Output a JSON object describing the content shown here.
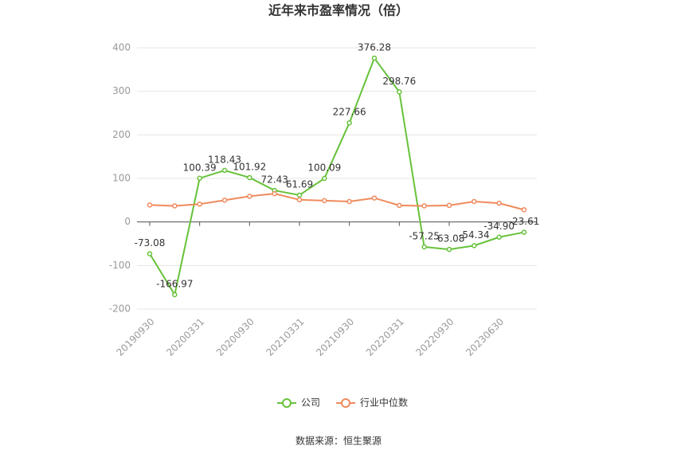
{
  "chart_data": {
    "type": "line",
    "title": "近年来市盈率情况（倍）",
    "source": "数据来源：恒生聚源",
    "categories": [
      "20190930",
      null,
      "20200331",
      null,
      "20200930",
      null,
      "20210331",
      null,
      "20210930",
      null,
      "20220331",
      null,
      "20220930",
      null,
      "20230630",
      null
    ],
    "series": [
      {
        "name": "公司",
        "color": "#66c23a",
        "values": [
          -73.08,
          -166.97,
          100.39,
          118.43,
          101.92,
          72.43,
          61.69,
          100.09,
          227.66,
          376.28,
          298.76,
          -57.25,
          -63.08,
          -54.34,
          -34.9,
          -23.61
        ],
        "value_labels": [
          "-73.08",
          "-166.97",
          "100.39",
          "118.43",
          "101.92",
          "72.43",
          "61.69",
          "100.09",
          "227.66",
          "376.28",
          "298.76",
          "-57.25",
          "-63.08",
          "-54.34",
          "-34.90",
          "-23.61"
        ]
      },
      {
        "name": "行业中位数",
        "color": "#f08a5d",
        "values": [
          39,
          37,
          41,
          50,
          59,
          65,
          51,
          49,
          47,
          55,
          38,
          37,
          38,
          47,
          43,
          28
        ]
      }
    ],
    "ylim": [
      -200,
      400
    ],
    "yticks": [
      -200,
      -100,
      0,
      100,
      200,
      300,
      400
    ],
    "grid": true,
    "legend": "bottom"
  }
}
